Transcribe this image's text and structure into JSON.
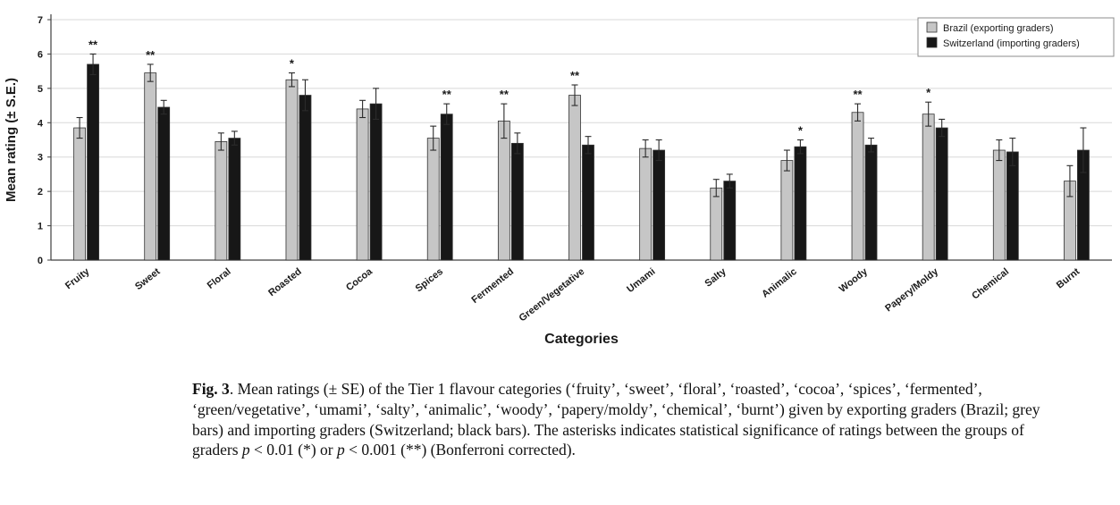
{
  "page": {
    "background": "#ffffff"
  },
  "chart_data": {
    "type": "bar",
    "title": "",
    "xlabel": "Categories",
    "ylabel": "Mean rating (± S.E.)",
    "ylim": [
      0,
      7
    ],
    "yticks": [
      0,
      1,
      2,
      3,
      4,
      5,
      6,
      7
    ],
    "grid": true,
    "legend_position": "top-right",
    "categories": [
      "Fruity",
      "Sweet",
      "Floral",
      "Roasted",
      "Cocoa",
      "Spices",
      "Fermented",
      "Green/Vegetative",
      "Umami",
      "Salty",
      "Animalic",
      "Woody",
      "Papery/Moldy",
      "Chemical",
      "Burnt"
    ],
    "series": [
      {
        "name": "Brazil (exporting graders)",
        "color": "#c6c6c6",
        "values": [
          3.85,
          5.45,
          3.45,
          5.25,
          4.4,
          3.55,
          4.05,
          4.8,
          3.25,
          2.1,
          2.9,
          4.3,
          4.25,
          3.2,
          2.3
        ],
        "errors": [
          0.3,
          0.25,
          0.25,
          0.2,
          0.25,
          0.35,
          0.5,
          0.3,
          0.25,
          0.25,
          0.3,
          0.25,
          0.35,
          0.3,
          0.45
        ]
      },
      {
        "name": "Switzerland (importing graders)",
        "color": "#171717",
        "values": [
          5.7,
          4.45,
          3.55,
          4.8,
          4.55,
          4.25,
          3.4,
          3.35,
          3.2,
          2.3,
          3.3,
          3.35,
          3.85,
          3.15,
          3.2
        ],
        "errors": [
          0.3,
          0.2,
          0.2,
          0.45,
          0.45,
          0.3,
          0.3,
          0.25,
          0.3,
          0.2,
          0.2,
          0.2,
          0.25,
          0.4,
          0.65
        ]
      }
    ],
    "significance": [
      {
        "category": "Fruity",
        "series_index": 1,
        "marker": "**"
      },
      {
        "category": "Sweet",
        "series_index": 0,
        "marker": "**"
      },
      {
        "category": "Roasted",
        "series_index": 0,
        "marker": "*"
      },
      {
        "category": "Spices",
        "series_index": 1,
        "marker": "**"
      },
      {
        "category": "Fermented",
        "series_index": 0,
        "marker": "**"
      },
      {
        "category": "Green/Vegetative",
        "series_index": 0,
        "marker": "**"
      },
      {
        "category": "Animalic",
        "series_index": 1,
        "marker": "*"
      },
      {
        "category": "Woody",
        "series_index": 0,
        "marker": "**"
      },
      {
        "category": "Papery/Moldy",
        "series_index": 0,
        "marker": "*"
      }
    ]
  },
  "caption": {
    "segments": [
      {
        "style": "bold",
        "text": "Fig. 3"
      },
      {
        "style": "normal",
        "text": ". Mean ratings (± SE) of the Tier 1 flavour categories (‘fruity’, ‘sweet’, ‘floral’, ‘roasted’, ‘cocoa’, ‘spices’, ‘fermented’, ‘green/vegetative’, ‘umami’, ‘salty’, ‘animalic’, ‘woody’, ‘papery/moldy’, ‘chemical’, ‘burnt’) given by exporting graders (Brazil; grey bars) and importing graders (Switzerland; black bars). The asterisks indicates statistical significance of ratings between the groups of graders "
      },
      {
        "style": "italic",
        "text": "p"
      },
      {
        "style": "normal",
        "text": " < 0.01 (*) or "
      },
      {
        "style": "italic",
        "text": "p"
      },
      {
        "style": "normal",
        "text": " < 0.001 (**) (Bonferroni corrected)."
      }
    ]
  }
}
